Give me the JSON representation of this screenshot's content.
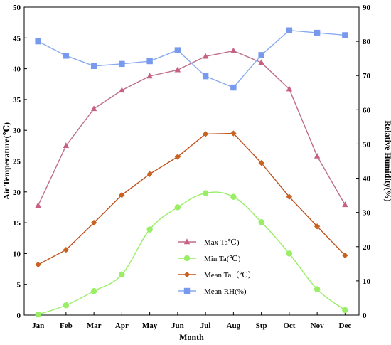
{
  "chart_data": {
    "type": "line",
    "categories": [
      "Jan",
      "Feb",
      "Mar",
      "Apr",
      "May",
      "Jun",
      "Jul",
      "Aug",
      "Stp",
      "Oct",
      "Nov",
      "Dec"
    ],
    "xlabel": "Month",
    "ylabel_left": "Air Temperature(℃)",
    "ylabel_right": "Relative Humidity(%)",
    "ylim_left": [
      0,
      50
    ],
    "ylim_right": [
      0,
      90
    ],
    "yticks_left": [
      0,
      5,
      10,
      15,
      20,
      25,
      30,
      35,
      40,
      45,
      50
    ],
    "yticks_right": [
      0,
      10,
      20,
      30,
      40,
      50,
      60,
      70,
      80,
      90
    ],
    "grid": false,
    "legend_position": "center-bottom",
    "series": [
      {
        "name": "Max Ta℃)",
        "axis": "left",
        "marker": "triangle",
        "color": "#c06c8c",
        "marker_color": "#c86080",
        "values": [
          17.8,
          27.5,
          33.5,
          36.5,
          38.8,
          39.8,
          42.0,
          42.9,
          41.0,
          36.7,
          25.8,
          17.9
        ]
      },
      {
        "name": "Min Ta(℃)",
        "axis": "left",
        "marker": "circle",
        "color": "#99ee66",
        "marker_color": "#99ee66",
        "values": [
          0.1,
          1.6,
          3.9,
          6.6,
          13.9,
          17.5,
          19.8,
          19.2,
          15.1,
          10.0,
          4.2,
          0.8
        ]
      },
      {
        "name": "Mean Ta（℃）",
        "axis": "left",
        "marker": "diamond",
        "color": "#c0501c",
        "marker_color": "#c8621e",
        "values": [
          8.2,
          10.6,
          15.0,
          19.5,
          22.9,
          25.7,
          29.4,
          29.5,
          24.7,
          19.2,
          14.4,
          9.7
        ]
      },
      {
        "name": "Mean RH(%)",
        "axis": "right",
        "marker": "square",
        "color": "#88aaee",
        "marker_color": "#7799ee",
        "values": [
          80.0,
          75.8,
          72.8,
          73.4,
          74.2,
          77.4,
          69.8,
          66.5,
          76.0,
          83.2,
          82.5,
          81.8
        ]
      }
    ]
  }
}
